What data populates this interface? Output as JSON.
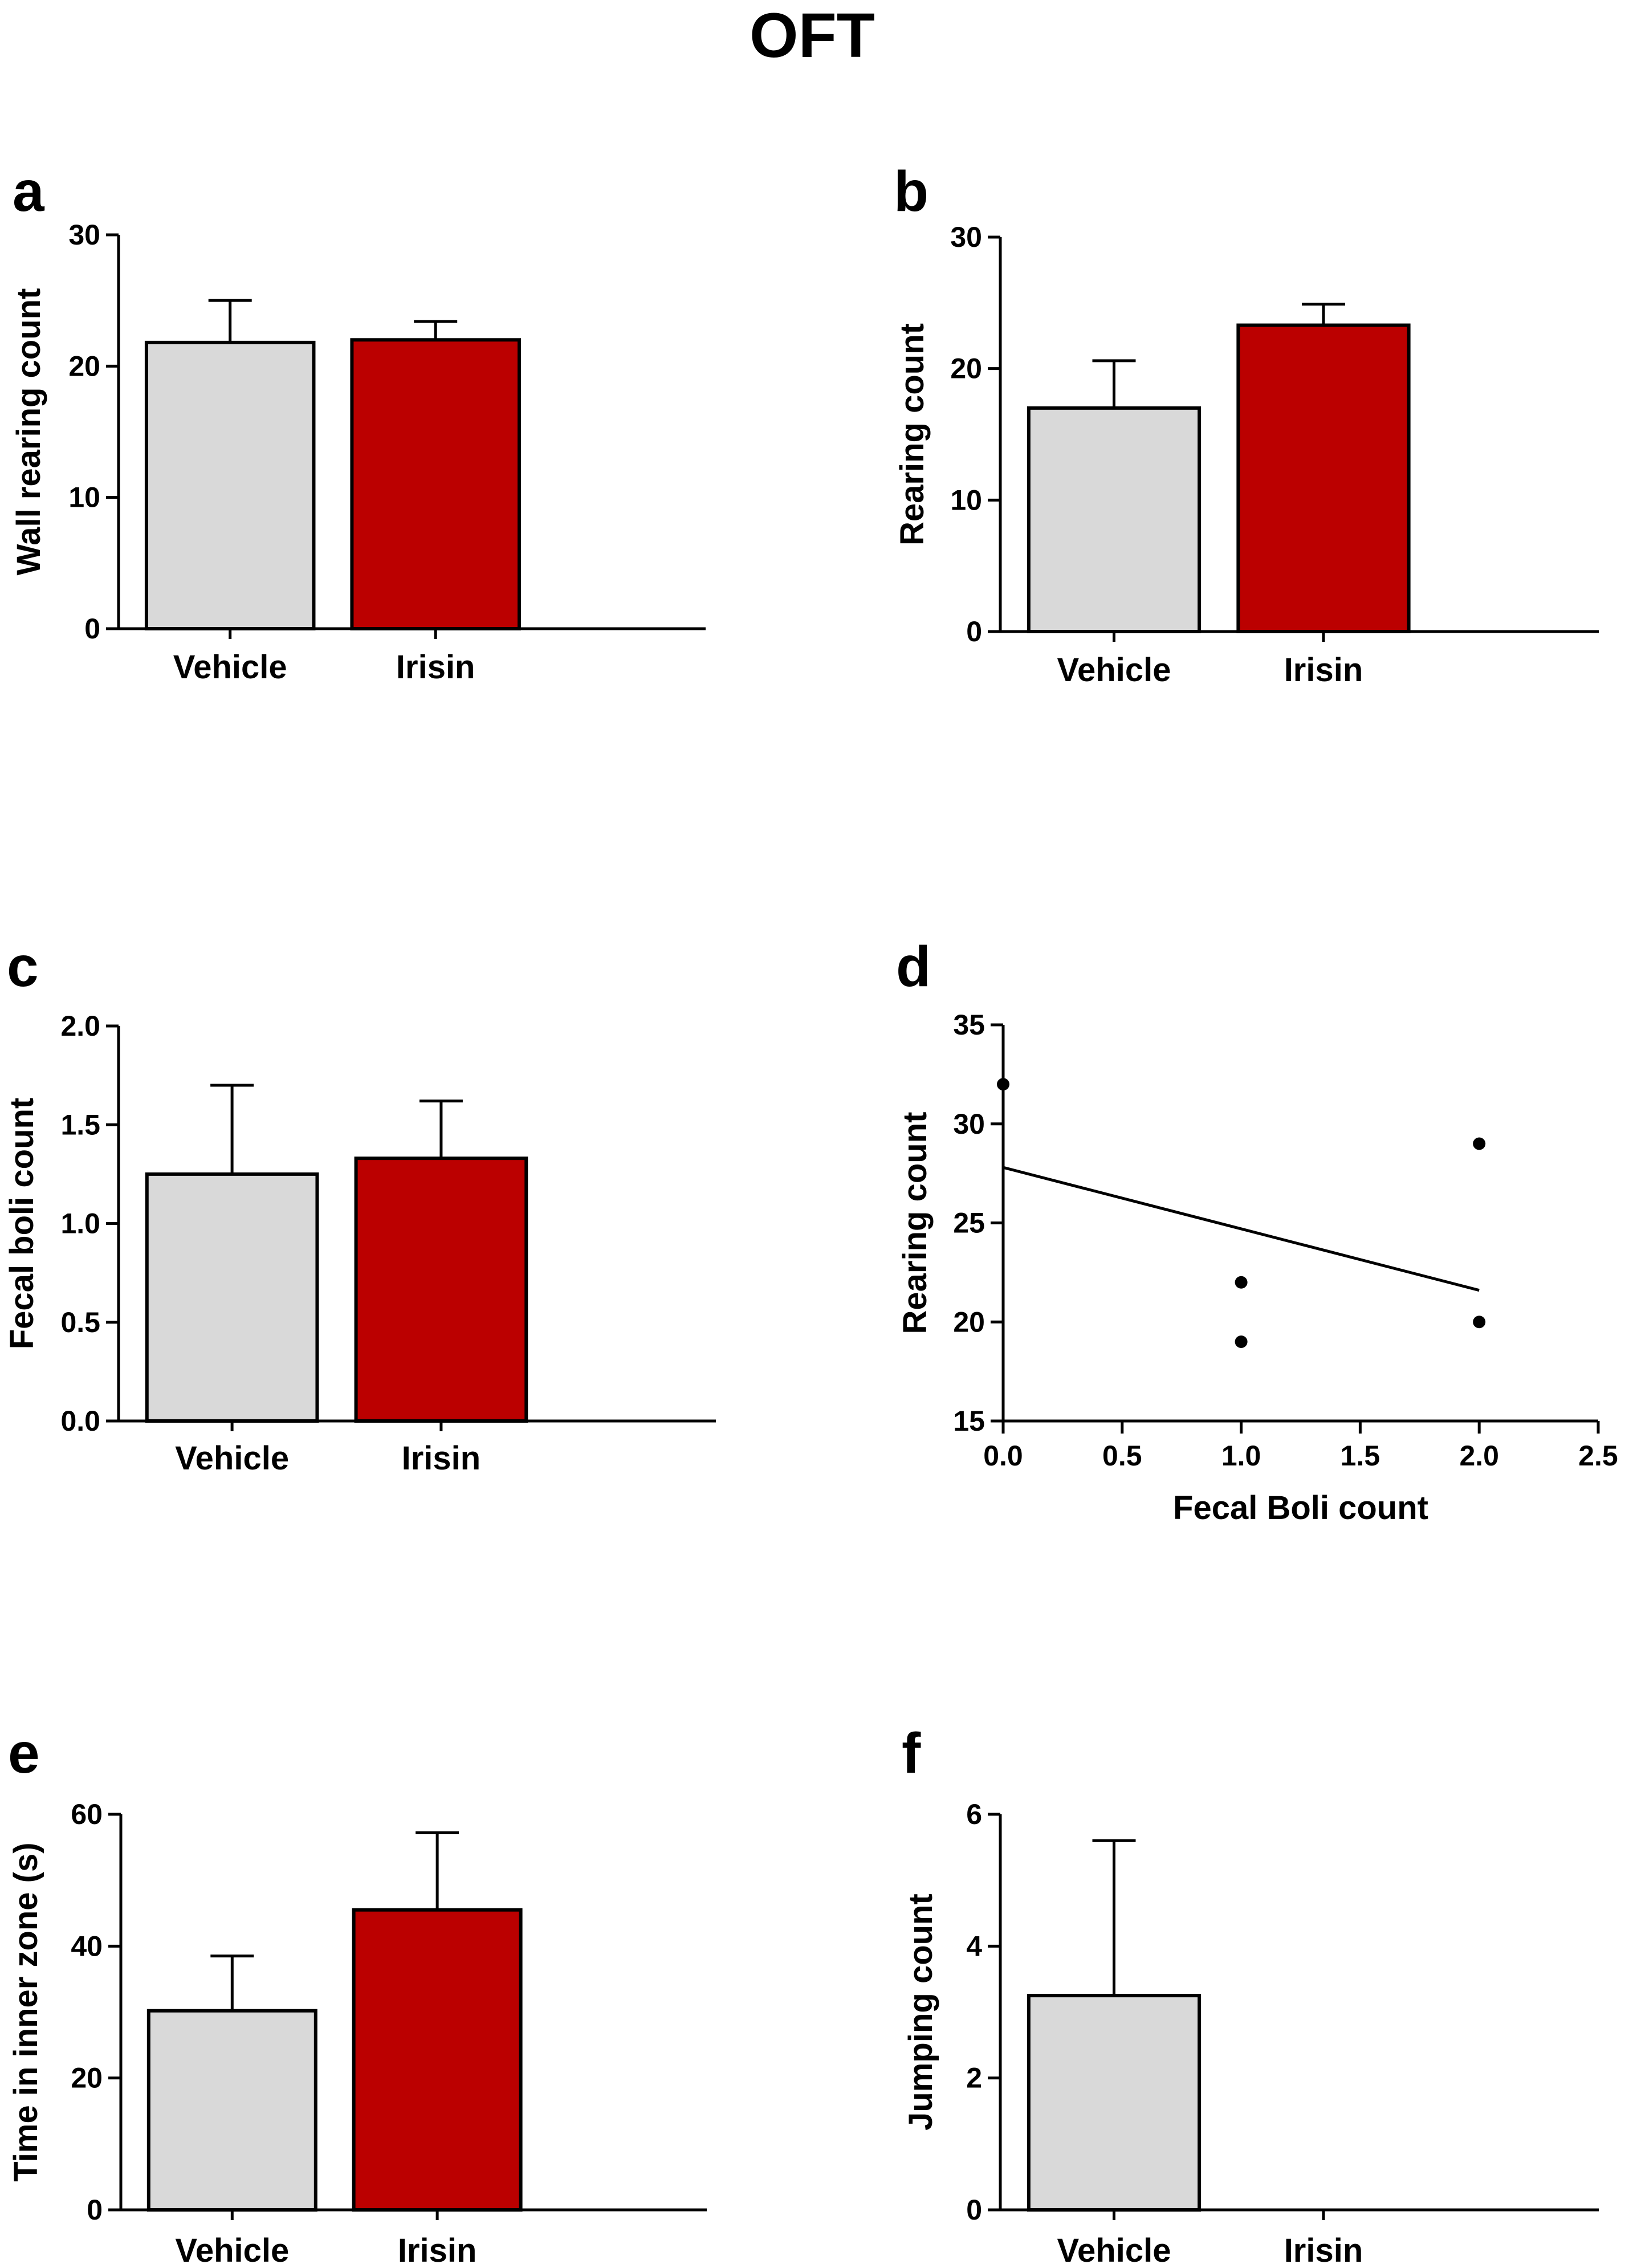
{
  "title": "OFT",
  "colors": {
    "vehicle": "#d9d9d9",
    "irisin": "#bb0000",
    "axis": "#000000"
  },
  "chart_data": [
    {
      "id": "a",
      "type": "bar",
      "panel_label": "a",
      "ylabel": "Wall rearing count",
      "xlabel": "",
      "ylim": [
        0,
        30
      ],
      "yticks": [
        0,
        10,
        20,
        30
      ],
      "ytick_labels": [
        "0",
        "10",
        "20",
        "30"
      ],
      "categories": [
        "Vehicle",
        "Irisin"
      ],
      "values": [
        21.8,
        22.0
      ],
      "errors": [
        3.2,
        1.4
      ],
      "colors": [
        "#d9d9d9",
        "#bb0000"
      ]
    },
    {
      "id": "b",
      "type": "bar",
      "panel_label": "b",
      "ylabel": "Rearing count",
      "xlabel": "",
      "ylim": [
        0,
        30
      ],
      "yticks": [
        0,
        10,
        20,
        30
      ],
      "ytick_labels": [
        "0",
        "10",
        "20",
        "30"
      ],
      "categories": [
        "Vehicle",
        "Irisin"
      ],
      "values": [
        17.0,
        23.3
      ],
      "errors": [
        3.6,
        1.6
      ],
      "colors": [
        "#d9d9d9",
        "#bb0000"
      ]
    },
    {
      "id": "c",
      "type": "bar",
      "panel_label": "c",
      "ylabel": "Fecal boli count",
      "xlabel": "",
      "ylim": [
        0,
        2.0
      ],
      "yticks": [
        0,
        0.5,
        1.0,
        1.5,
        2.0
      ],
      "ytick_labels": [
        "0.0",
        "0.5",
        "1.0",
        "1.5",
        "2.0"
      ],
      "categories": [
        "Vehicle",
        "Irisin"
      ],
      "values": [
        1.25,
        1.33
      ],
      "errors": [
        0.45,
        0.29
      ],
      "colors": [
        "#d9d9d9",
        "#bb0000"
      ]
    },
    {
      "id": "d",
      "type": "scatter",
      "panel_label": "d",
      "ylabel": "Rearing count",
      "xlabel": "Fecal Boli count",
      "xlim": [
        0,
        2.5
      ],
      "xticks": [
        0,
        0.5,
        1.0,
        1.5,
        2.0,
        2.5
      ],
      "xtick_labels": [
        "0.0",
        "0.5",
        "1.0",
        "1.5",
        "2.0",
        "2.5"
      ],
      "ylim": [
        15,
        35
      ],
      "yticks": [
        15,
        20,
        25,
        30,
        35
      ],
      "ytick_labels": [
        "15",
        "20",
        "25",
        "30",
        "35"
      ],
      "points": [
        {
          "x": 0,
          "y": 32
        },
        {
          "x": 1,
          "y": 22
        },
        {
          "x": 1,
          "y": 19
        },
        {
          "x": 2,
          "y": 29
        },
        {
          "x": 2,
          "y": 20
        }
      ],
      "fit_line": {
        "x1": 0,
        "y1": 27.8,
        "x2": 2,
        "y2": 21.6
      }
    },
    {
      "id": "e",
      "type": "bar",
      "panel_label": "e",
      "ylabel": "Time in inner zone (s)",
      "xlabel": "",
      "ylim": [
        0,
        60
      ],
      "yticks": [
        0,
        20,
        40,
        60
      ],
      "ytick_labels": [
        "0",
        "20",
        "40",
        "60"
      ],
      "categories": [
        "Vehicle",
        "Irisin"
      ],
      "values": [
        30.2,
        45.5
      ],
      "errors": [
        8.3,
        11.7
      ],
      "colors": [
        "#d9d9d9",
        "#bb0000"
      ]
    },
    {
      "id": "f",
      "type": "bar",
      "panel_label": "f",
      "ylabel": "Jumping count",
      "xlabel": "",
      "ylim": [
        0,
        6
      ],
      "yticks": [
        0,
        2,
        4,
        6
      ],
      "ytick_labels": [
        "0",
        "2",
        "4",
        "6"
      ],
      "categories": [
        "Vehicle",
        "Irisin"
      ],
      "values": [
        3.25,
        0
      ],
      "errors": [
        2.35,
        0
      ],
      "colors": [
        "#d9d9d9",
        "#bb0000"
      ]
    }
  ]
}
